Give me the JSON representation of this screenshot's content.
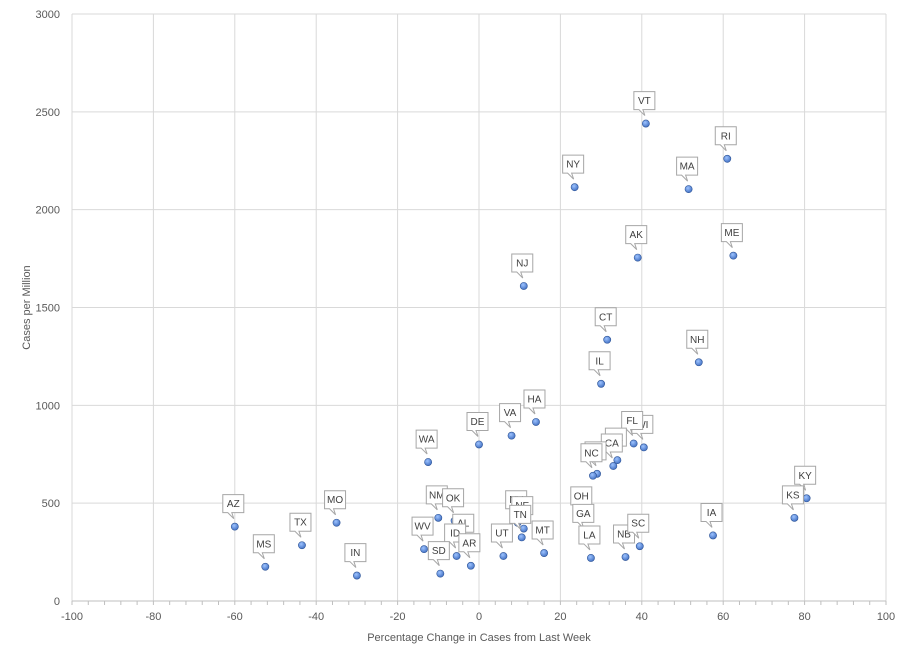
{
  "chart_data": {
    "type": "scatter",
    "title": "",
    "xlabel": "Percentage Change  in Cases from Last Week",
    "ylabel": "Cases per Million",
    "xlim": [
      -100,
      100
    ],
    "ylim": [
      0,
      3000
    ],
    "x_ticks": [
      "-100",
      "-80",
      "-60",
      "-40",
      "-20",
      "0",
      "20",
      "40",
      "60",
      "80",
      "100"
    ],
    "y_ticks": [
      "0",
      "500",
      "1000",
      "1500",
      "2000",
      "2500",
      "3000"
    ],
    "grid": true,
    "legend": "none",
    "marker_color": "#4472c4",
    "points": [
      {
        "label": "VT",
        "x": 41,
        "y": 2440
      },
      {
        "label": "RI",
        "x": 61,
        "y": 2260
      },
      {
        "label": "NY",
        "x": 23.5,
        "y": 2115
      },
      {
        "label": "MA",
        "x": 51.5,
        "y": 2105
      },
      {
        "label": "AK",
        "x": 39,
        "y": 1755
      },
      {
        "label": "ME",
        "x": 62.5,
        "y": 1765
      },
      {
        "label": "NJ",
        "x": 11,
        "y": 1610
      },
      {
        "label": "CT",
        "x": 31.5,
        "y": 1335
      },
      {
        "label": "NH",
        "x": 54,
        "y": 1220
      },
      {
        "label": "IL",
        "x": 30,
        "y": 1110
      },
      {
        "label": "HA",
        "x": 14,
        "y": 915
      },
      {
        "label": "VA",
        "x": 8,
        "y": 845
      },
      {
        "label": "DE",
        "x": 0,
        "y": 800
      },
      {
        "label": "WA",
        "x": -12.5,
        "y": 710
      },
      {
        "label": "WI",
        "x": 40.5,
        "y": 785
      },
      {
        "label": "FL",
        "x": 38,
        "y": 805
      },
      {
        "label": "OR",
        "x": 34,
        "y": 720
      },
      {
        "label": "CA",
        "x": 33,
        "y": 690
      },
      {
        "label": "PA",
        "x": 29,
        "y": 650
      },
      {
        "label": "NC",
        "x": 28,
        "y": 640
      },
      {
        "label": "KY",
        "x": 80.5,
        "y": 525
      },
      {
        "label": "KS",
        "x": 77.5,
        "y": 425
      },
      {
        "label": "AZ",
        "x": -60,
        "y": 380
      },
      {
        "label": "MO",
        "x": -35,
        "y": 400
      },
      {
        "label": "TX",
        "x": -43.5,
        "y": 285
      },
      {
        "label": "MS",
        "x": -52.5,
        "y": 175
      },
      {
        "label": "IN",
        "x": -30,
        "y": 130
      },
      {
        "label": "NM",
        "x": -10,
        "y": 425
      },
      {
        "label": "OK",
        "x": -6,
        "y": 410
      },
      {
        "label": "WV",
        "x": -13.5,
        "y": 265
      },
      {
        "label": "AL",
        "x": -3.5,
        "y": 280
      },
      {
        "label": "ID",
        "x": -5.5,
        "y": 230
      },
      {
        "label": "SD",
        "x": -9.5,
        "y": 140
      },
      {
        "label": "AR",
        "x": -2,
        "y": 180
      },
      {
        "label": "NV",
        "x": 9.5,
        "y": 400
      },
      {
        "label": "NE",
        "x": 11,
        "y": 370
      },
      {
        "label": "TN",
        "x": 10.5,
        "y": 325
      },
      {
        "label": "UT",
        "x": 6,
        "y": 230
      },
      {
        "label": "MT",
        "x": 16,
        "y": 245
      },
      {
        "label": "OH",
        "x": 25.5,
        "y": 420
      },
      {
        "label": "GA",
        "x": 26,
        "y": 330
      },
      {
        "label": "LA",
        "x": 27.5,
        "y": 220
      },
      {
        "label": "NB",
        "x": 36,
        "y": 225
      },
      {
        "label": "SC",
        "x": 39.5,
        "y": 280
      },
      {
        "label": "IA",
        "x": 57.5,
        "y": 335
      }
    ]
  }
}
